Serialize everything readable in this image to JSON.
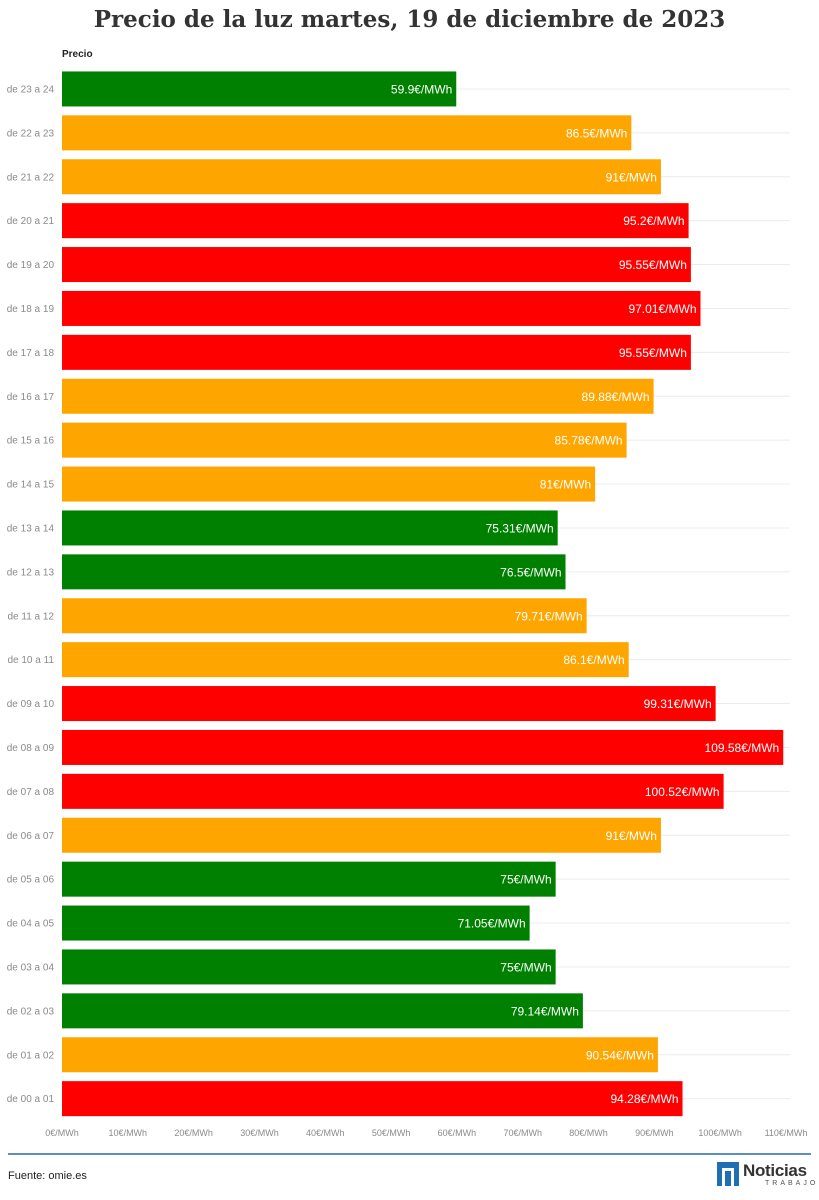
{
  "colors": {
    "green": "#008000",
    "orange": "#ffa500",
    "red": "#ff0000",
    "footer_line": "#5b8fc0",
    "logo_blue": "#1e6fb3"
  },
  "footer": {
    "source": "Fuente: omie.es",
    "logo_main": "Noticias",
    "logo_sub": "TRABAJO",
    "logo_icon": "n-logo-icon"
  },
  "chart_data": {
    "type": "bar",
    "orientation": "horizontal",
    "title": "Precio de la luz martes, 19 de diciembre de 2023",
    "ylabel": "Precio",
    "xlim": [
      0,
      110
    ],
    "xticks": [
      0,
      10,
      20,
      30,
      40,
      50,
      60,
      70,
      80,
      90,
      100,
      110
    ],
    "xtick_labels": [
      "0€/MWh",
      "10€/MWh",
      "20€/MWh",
      "30€/MWh",
      "40€/MWh",
      "50€/MWh",
      "60€/MWh",
      "70€/MWh",
      "80€/MWh",
      "90€/MWh",
      "100€/MWh",
      "110€/MWh"
    ],
    "grid": true,
    "categories": [
      "de 23 a 24",
      "de 22 a 23",
      "de 21 a 22",
      "de 20 a 21",
      "de 19 a 20",
      "de 18 a 19",
      "de 17 a 18",
      "de 16 a 17",
      "de 15 a 16",
      "de 14 a 15",
      "de 13 a 14",
      "de 12 a 13",
      "de 11 a 12",
      "de 10 a 11",
      "de 09 a 10",
      "de 08 a 09",
      "de 07 a 08",
      "de 06 a 07",
      "de 05 a 06",
      "de 04 a 05",
      "de 03 a 04",
      "de 02 a 03",
      "de 01 a 02",
      "de 00 a 01"
    ],
    "values": [
      59.9,
      86.5,
      91,
      95.2,
      95.55,
      97.01,
      95.55,
      89.88,
      85.78,
      81,
      75.31,
      76.5,
      79.71,
      86.1,
      99.31,
      109.58,
      100.52,
      91,
      75,
      71.05,
      75,
      79.14,
      90.54,
      94.28
    ],
    "value_labels": [
      "59.9€/MWh",
      "86.5€/MWh",
      "91€/MWh",
      "95.2€/MWh",
      "95.55€/MWh",
      "97.01€/MWh",
      "95.55€/MWh",
      "89.88€/MWh",
      "85.78€/MWh",
      "81€/MWh",
      "75.31€/MWh",
      "76.5€/MWh",
      "79.71€/MWh",
      "86.1€/MWh",
      "99.31€/MWh",
      "109.58€/MWh",
      "100.52€/MWh",
      "91€/MWh",
      "75€/MWh",
      "71.05€/MWh",
      "75€/MWh",
      "79.14€/MWh",
      "90.54€/MWh",
      "94.28€/MWh"
    ],
    "bar_colors": [
      "green",
      "orange",
      "orange",
      "red",
      "red",
      "red",
      "red",
      "orange",
      "orange",
      "orange",
      "green",
      "green",
      "orange",
      "orange",
      "red",
      "red",
      "red",
      "orange",
      "green",
      "green",
      "green",
      "green",
      "orange",
      "red"
    ]
  }
}
